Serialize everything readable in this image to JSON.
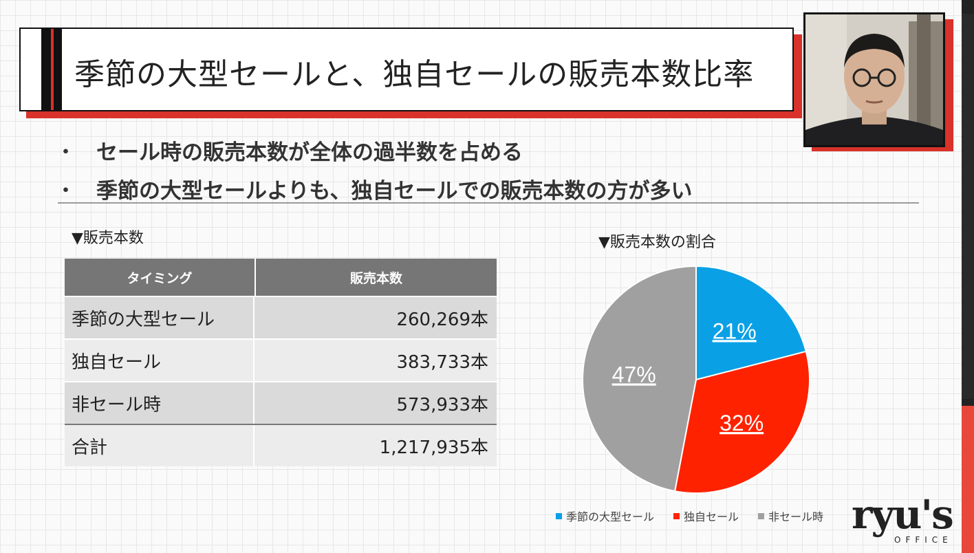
{
  "title": "季節の大型セールと、独自セールの販売本数比率",
  "bullets": [
    "セール時の販売本数が全体の過半数を占める",
    "季節の大型セールよりも、独自セールでの販売本数の方が多い"
  ],
  "bullet_marker": "・",
  "table": {
    "heading": "▼販売本数",
    "headers": [
      "タイミング",
      "販売本数"
    ],
    "rows": [
      {
        "label": "季節の大型セール",
        "value": "260,269本"
      },
      {
        "label": "独自セール",
        "value": "383,733本"
      },
      {
        "label": "非セール時",
        "value": "573,933本"
      },
      {
        "label": "合計",
        "value": "1,217,935本"
      }
    ]
  },
  "chart_heading": "▼販売本数の割合",
  "chart_data": {
    "type": "pie",
    "title": "▼販売本数の割合",
    "categories": [
      "季節の大型セール",
      "独自セール",
      "非セール時"
    ],
    "values": [
      21,
      32,
      47
    ],
    "labels": [
      "21%",
      "32%",
      "47%"
    ],
    "colors": [
      "#0aa0e6",
      "#ff2200",
      "#a0a0a0"
    ],
    "legend_position": "bottom"
  },
  "logo": {
    "text": "ryu's",
    "sub": "OFFICE"
  }
}
